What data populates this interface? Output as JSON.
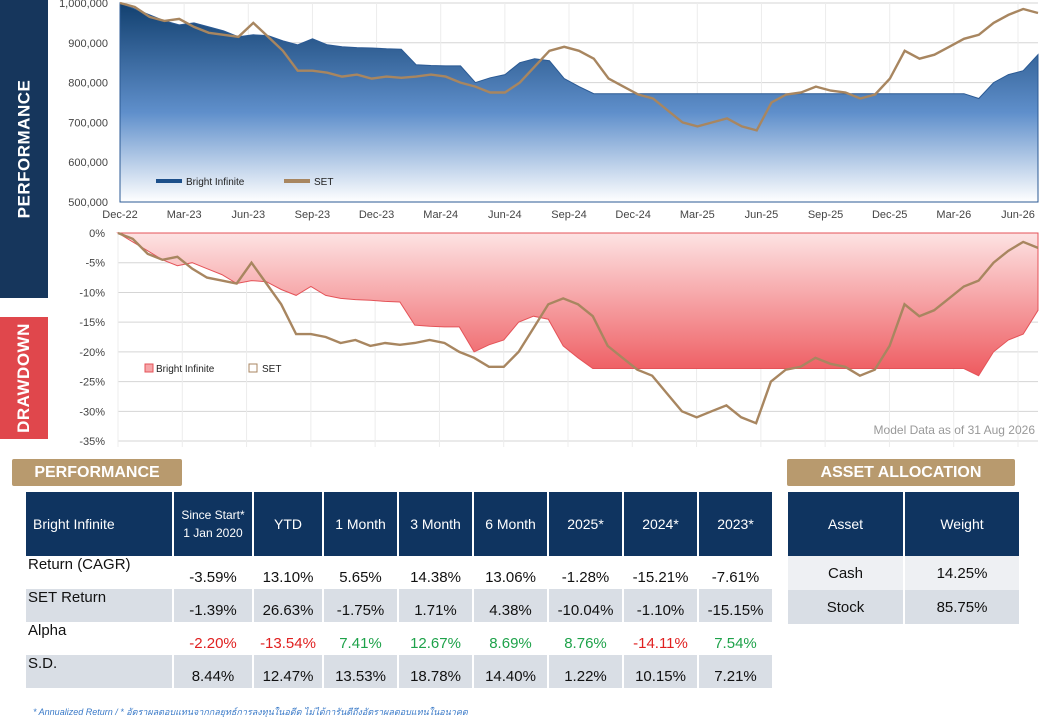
{
  "banners": {
    "performance": "PERFORMANCE",
    "drawdown": "DRAWDOWN"
  },
  "colors": {
    "navy": "#16365c",
    "red": "#e0474c",
    "gold": "#b89a6e",
    "set_line": "#a88660",
    "fund_fill": "#1c4f8a",
    "dd_fill": "#f0767a",
    "neg_text": "#e02020",
    "pos_text": "#1ea24a"
  },
  "chart_data": [
    {
      "type": "area",
      "x_tick_labels": [
        "Dec-22",
        "Mar-23",
        "Jun-23",
        "Sep-23",
        "Dec-23",
        "Mar-24",
        "Jun-24",
        "Sep-24",
        "Dec-24",
        "Mar-25",
        "Jun-25",
        "Sep-25",
        "Dec-25",
        "Mar-26",
        "Jun-26"
      ],
      "y_tick_labels": [
        "1,000,000",
        "900,000",
        "800,000",
        "700,000",
        "600,000",
        "500,000"
      ],
      "ylim": [
        500000,
        1000000
      ],
      "grid": true,
      "legend_position": "bottom-left",
      "series": [
        {
          "name": "Bright Infinite",
          "values": [
            1000000,
            985000,
            970000,
            955000,
            945000,
            950000,
            940000,
            930000,
            915000,
            920000,
            918000,
            905000,
            895000,
            910000,
            895000,
            890000,
            888000,
            887000,
            885000,
            884000,
            845000,
            843000,
            842000,
            842000,
            800000,
            812000,
            820000,
            850000,
            860000,
            855000,
            810000,
            790000,
            772000,
            772000,
            772000,
            772000,
            772000,
            772000,
            772000,
            772000,
            772000,
            772000,
            772000,
            772000,
            772000,
            772000,
            772000,
            772000,
            772000,
            772000,
            772000,
            772000,
            772000,
            772000,
            772000,
            772000,
            772000,
            772000,
            760000,
            800000,
            820000,
            830000,
            870000
          ]
        },
        {
          "name": "SET",
          "values": [
            1000000,
            990000,
            965000,
            955000,
            960000,
            940000,
            925000,
            920000,
            915000,
            950000,
            915000,
            880000,
            830000,
            830000,
            825000,
            815000,
            820000,
            810000,
            815000,
            812000,
            815000,
            820000,
            815000,
            800000,
            790000,
            775000,
            775000,
            800000,
            840000,
            880000,
            890000,
            880000,
            860000,
            810000,
            790000,
            770000,
            760000,
            730000,
            700000,
            690000,
            700000,
            710000,
            690000,
            680000,
            750000,
            770000,
            775000,
            790000,
            780000,
            775000,
            760000,
            770000,
            810000,
            880000,
            860000,
            870000,
            890000,
            910000,
            920000,
            950000,
            970000,
            985000,
            975000
          ]
        }
      ]
    },
    {
      "type": "area",
      "y_tick_labels": [
        "0%",
        "-5%",
        "-10%",
        "-15%",
        "-20%",
        "-25%",
        "-30%",
        "-35%"
      ],
      "ylim": [
        -36,
        0
      ],
      "grid": true,
      "legend_position": "left",
      "annotation": "Model Data as of 31 Aug 2026",
      "series": [
        {
          "name": "Bright Infinite",
          "values": [
            0,
            -1.5,
            -3,
            -4.5,
            -5.5,
            -5,
            -6,
            -7,
            -8.5,
            -8,
            -8.2,
            -9.5,
            -10.5,
            -9,
            -10.5,
            -11,
            -11.2,
            -11.3,
            -11.5,
            -11.6,
            -15.5,
            -15.7,
            -15.8,
            -15.8,
            -20,
            -18.8,
            -18,
            -15,
            -14,
            -14.5,
            -19,
            -21,
            -22.8,
            -22.8,
            -22.8,
            -22.8,
            -22.8,
            -22.8,
            -22.8,
            -22.8,
            -22.8,
            -22.8,
            -22.8,
            -22.8,
            -22.8,
            -22.8,
            -22.8,
            -22.8,
            -22.8,
            -22.8,
            -22.8,
            -22.8,
            -22.8,
            -22.8,
            -22.8,
            -22.8,
            -22.8,
            -22.8,
            -24,
            -20,
            -18,
            -17,
            -13
          ]
        },
        {
          "name": "SET",
          "values": [
            0,
            -1,
            -3.5,
            -4.5,
            -4,
            -6,
            -7.5,
            -8,
            -8.5,
            -5,
            -8.5,
            -12,
            -17,
            -17,
            -17.5,
            -18.5,
            -18,
            -19,
            -18.5,
            -18.8,
            -18.5,
            -18,
            -18.5,
            -20,
            -21,
            -22.5,
            -22.5,
            -20,
            -16,
            -12,
            -11,
            -12,
            -14,
            -19,
            -21,
            -23,
            -24,
            -27,
            -30,
            -31,
            -30,
            -29,
            -31,
            -32,
            -25,
            -23,
            -22.5,
            -21,
            -22,
            -22.5,
            -24,
            -23,
            -19,
            -12,
            -14,
            -13,
            -11,
            -9,
            -8,
            -5,
            -3,
            -1.5,
            -2.5
          ]
        }
      ]
    }
  ],
  "performance": {
    "title": "PERFORMANCE",
    "headers": [
      "Bright Infinite",
      "Since Start*\n1 Jan 2020",
      "YTD",
      "1 Month",
      "3 Month",
      "6 Month",
      "2025*",
      "2024*",
      "2023*"
    ],
    "since_start_line1": "Since Start*",
    "since_start_line2": "1 Jan 2020",
    "rows": [
      {
        "label": "Return (CAGR)",
        "cells": [
          "-3.59%",
          "13.10%",
          "5.65%",
          "14.38%",
          "13.06%",
          "-1.28%",
          "-15.21%",
          "-7.61%"
        ]
      },
      {
        "label": "SET Return",
        "cells": [
          "-1.39%",
          "26.63%",
          "-1.75%",
          "1.71%",
          "4.38%",
          "-10.04%",
          "-1.10%",
          "-15.15%"
        ]
      },
      {
        "label": "Alpha",
        "cells": [
          "-2.20%",
          "-13.54%",
          "7.41%",
          "12.67%",
          "8.69%",
          "8.76%",
          "-14.11%",
          "7.54%"
        ]
      },
      {
        "label": "S.D.",
        "cells": [
          "8.44%",
          "12.47%",
          "13.53%",
          "18.78%",
          "14.40%",
          "1.22%",
          "10.15%",
          "7.21%"
        ]
      }
    ]
  },
  "allocation": {
    "title": "ASSET ALLOCATION",
    "headers": [
      "Asset",
      "Weight"
    ],
    "rows": [
      {
        "asset": "Cash",
        "weight": "14.25%"
      },
      {
        "asset": "Stock",
        "weight": "85.75%"
      }
    ]
  },
  "footnote": "* Annualized Return / * อัตราผลตอบแทนจากกลยุทธ์การลงทุนในอดีต ไม่ได้การันตีถึงอัตราผลตอบแทนในอนาคต"
}
